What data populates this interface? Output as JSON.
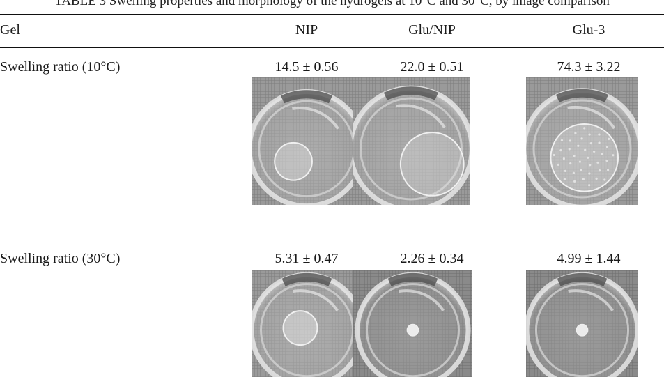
{
  "caption": "TABLE 3  Swelling properties and morphology of the hydrogels at 10°C and 30°C, by image comparison",
  "table": {
    "header": {
      "col0": "Gel",
      "col1": "NIP",
      "col2": "Glu/NIP",
      "col3": "Glu-3"
    },
    "rows": [
      {
        "label": "Swelling ratio (10°C)",
        "values": [
          "14.5 ± 0.56",
          "22.0 ± 0.51",
          "74.3 ± 3.22"
        ]
      },
      {
        "label": "Swelling ratio (30°C)",
        "values": [
          "5.31 ± 0.47",
          "2.26 ± 0.34",
          "4.99 ± 1.44"
        ]
      }
    ]
  },
  "photos": [
    {
      "name": "NIP gel at 10°C",
      "gel_shape": "medium-clear-disc",
      "tone": "light-grey"
    },
    {
      "name": "Glu/NIP gel at 10°C",
      "gel_shape": "large-clear-disc",
      "tone": "light-grey"
    },
    {
      "name": "Glu-3 gel at 10°C",
      "gel_shape": "large-textured-disc",
      "tone": "light-grey"
    },
    {
      "name": "NIP gel at 30°C",
      "gel_shape": "small-clear-disc",
      "tone": "light-grey"
    },
    {
      "name": "Glu/NIP gel at 30°C",
      "gel_shape": "tiny-opaque-dot",
      "tone": "mid-grey"
    },
    {
      "name": "Glu-3 gel at 30°C",
      "gel_shape": "tiny-opaque-dot",
      "tone": "mid-grey"
    }
  ]
}
